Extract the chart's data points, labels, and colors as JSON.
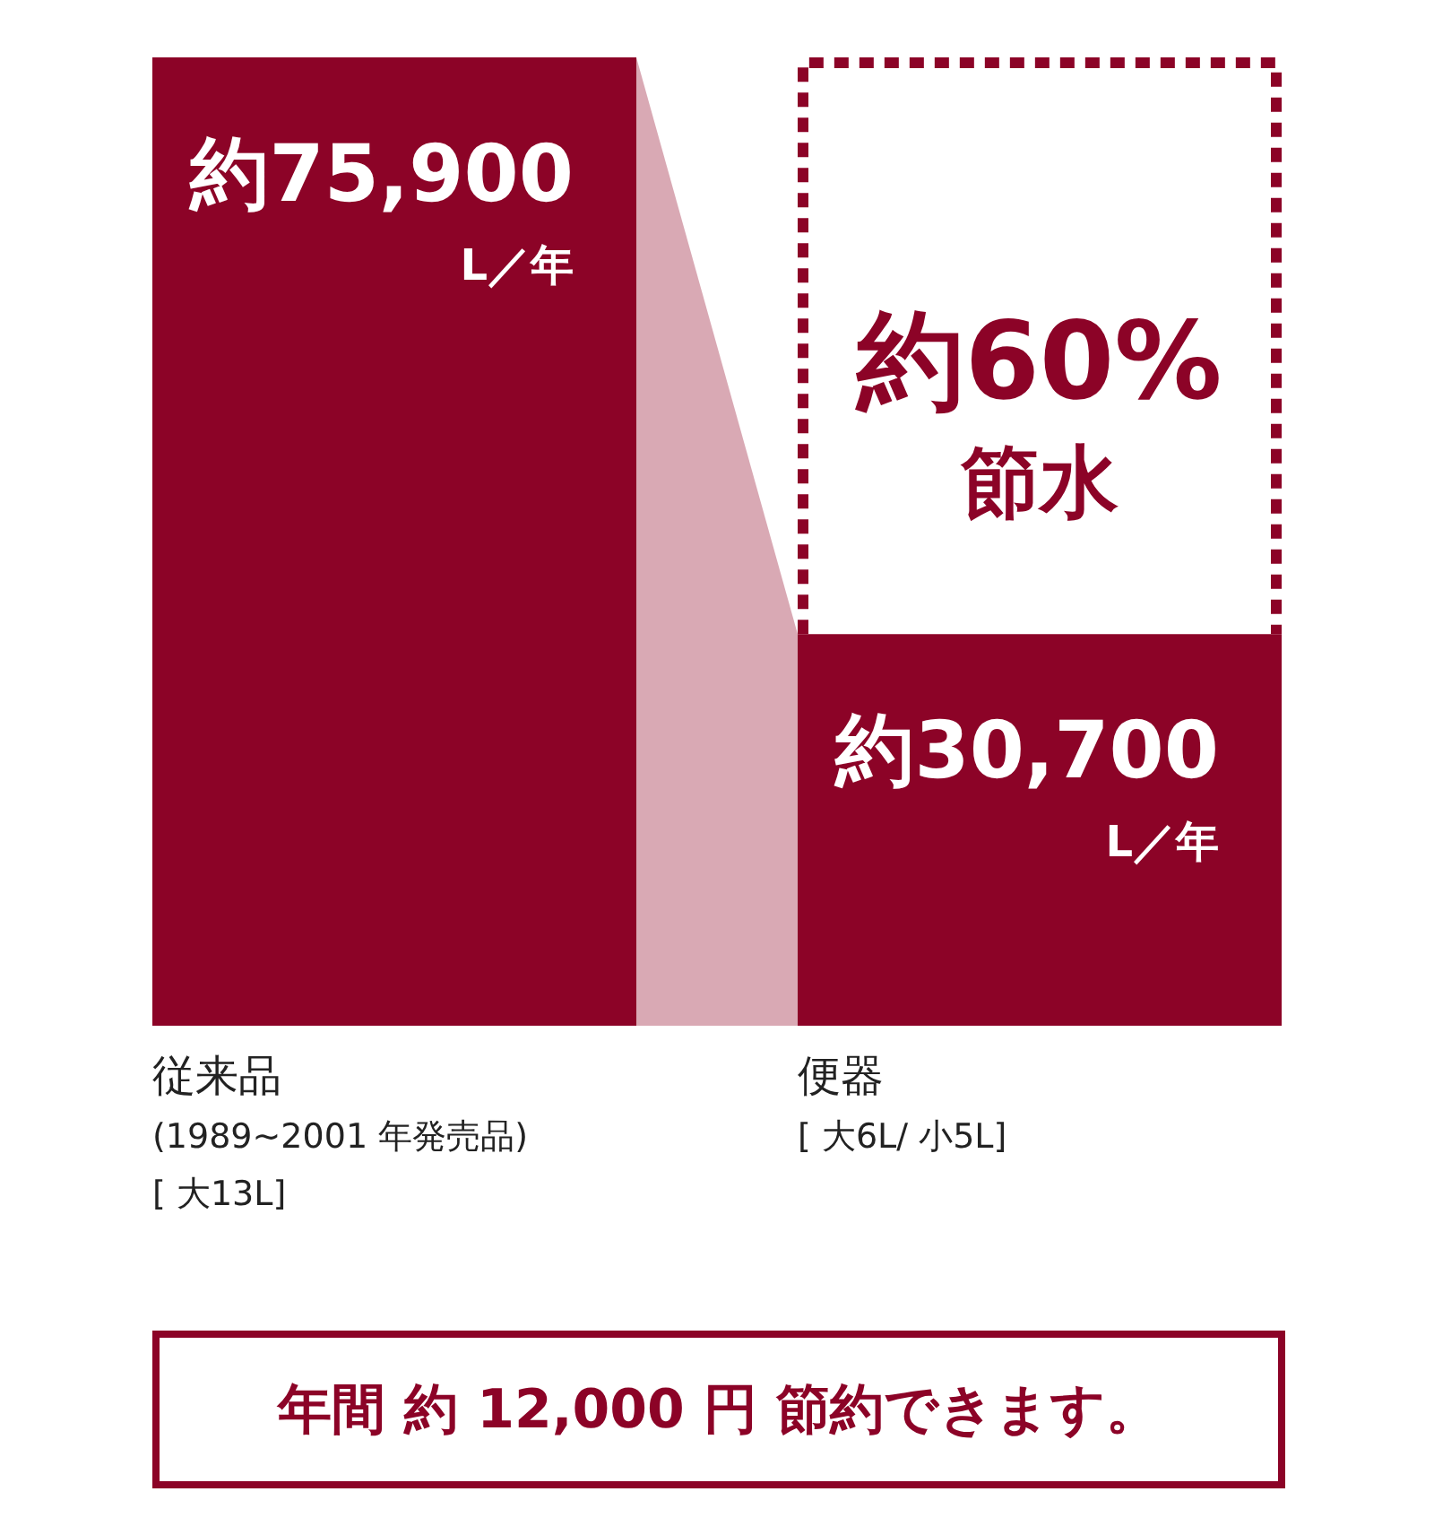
{
  "chart_data": {
    "type": "bar",
    "categories": [
      "従来品\n(1989~2001 年発売品)\n[ 大13L]",
      "便器\n[ 大6L/ 小5L]"
    ],
    "values": [
      75900,
      30700
    ],
    "value_labels": [
      "約75,900\nL／年",
      "約30,700\nL／年"
    ],
    "color": "#8c0327",
    "annotations": [
      "約60%\n節水",
      "年間 約 12,000 円 節約できます。"
    ]
  }
}
